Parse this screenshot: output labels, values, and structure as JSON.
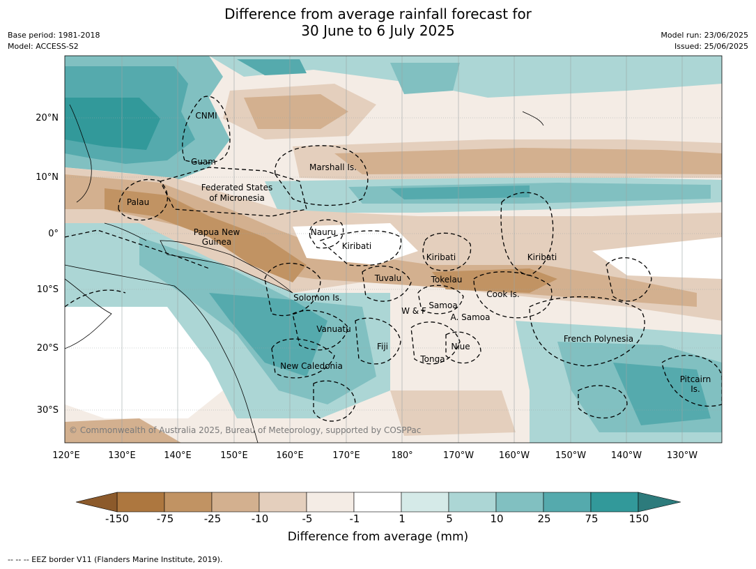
{
  "title": {
    "line1": "Difference from average rainfall forecast for",
    "line2": "30 June to 6 July 2025"
  },
  "meta": {
    "base_period": "Base period: 1981-2018",
    "model": "Model: ACCESS-S2",
    "model_run": "Model run: 23/06/2025",
    "issued": "Issued: 25/06/2025"
  },
  "map": {
    "lat_labels": [
      "20°N",
      "10°N",
      "0°",
      "10°S",
      "20°S",
      "30°S"
    ],
    "lon_labels": [
      "120°E",
      "130°E",
      "140°E",
      "150°E",
      "160°E",
      "170°E",
      "180°",
      "170°W",
      "160°W",
      "150°W",
      "140°W",
      "130°W"
    ],
    "copyright": "© Commonwealth of Australia 2025, Bureau of Meteorology, supported by COSPPac",
    "regions": [
      {
        "name": "CNMI"
      },
      {
        "name": "Guam"
      },
      {
        "name": "Marshall Is."
      },
      {
        "name": "Federated States"
      },
      {
        "name": "of Micronesia"
      },
      {
        "name": "Palau"
      },
      {
        "name": "Papua New"
      },
      {
        "name": "Guinea"
      },
      {
        "name": "Nauru"
      },
      {
        "name": "Kiribati"
      },
      {
        "name": "Kiribati"
      },
      {
        "name": "Kiribati"
      },
      {
        "name": "Tuvalu"
      },
      {
        "name": "Tokelau"
      },
      {
        "name": "Cook Is."
      },
      {
        "name": "Solomon Is."
      },
      {
        "name": "W & F"
      },
      {
        "name": "Samoa"
      },
      {
        "name": "A. Samoa"
      },
      {
        "name": "Vanuatu"
      },
      {
        "name": "Fiji"
      },
      {
        "name": "Niue"
      },
      {
        "name": "Tonga"
      },
      {
        "name": "New Caledonia"
      },
      {
        "name": "French Polynesia"
      },
      {
        "name": "Pitcairn"
      },
      {
        "name": "Is."
      }
    ]
  },
  "colorbar": {
    "label": "Difference from average (mm)",
    "ticks": [
      "-150",
      "-75",
      "-25",
      "-10",
      "-5",
      "-1",
      "1",
      "5",
      "10",
      "25",
      "75",
      "150"
    ],
    "colors": {
      "below_min": "#8c5a2b",
      "bins": [
        "#ad773f",
        "#c19363",
        "#d3b08f",
        "#e4cfbd",
        "#f4ece5",
        "#ffffff",
        "#d5eae8",
        "#acd6d5",
        "#81c0c1",
        "#55aaad",
        "#32999a"
      ],
      "above_max": "#2d7b7c"
    }
  },
  "footer": {
    "legend_text": "--  --  -- EEZ border V11 (Flanders Marine Institute, 2019)."
  }
}
